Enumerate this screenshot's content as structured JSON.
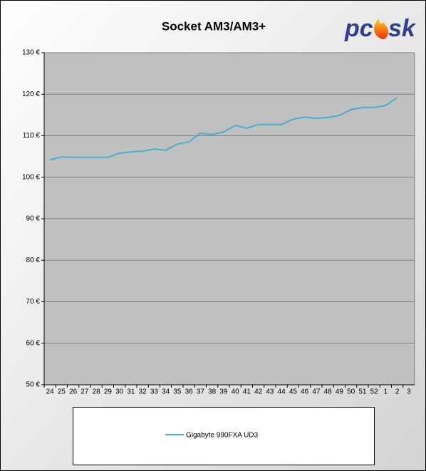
{
  "chart_data": {
    "type": "line",
    "title": "Socket AM3/AM3+",
    "logo_left": "pc",
    "logo_right": "sk",
    "categories": [
      "24",
      "25",
      "26",
      "27",
      "28",
      "29",
      "30",
      "31",
      "32",
      "33",
      "34",
      "35",
      "36",
      "37",
      "38",
      "39",
      "40",
      "41",
      "42",
      "43",
      "44",
      "45",
      "46",
      "47",
      "48",
      "49",
      "50",
      "51",
      "52",
      "1",
      "2",
      "3"
    ],
    "series": [
      {
        "name": "Gigabyte 990FXA UD3",
        "color": "#4aaccc",
        "values": [
          104.2,
          104.9,
          104.8,
          104.8,
          104.8,
          104.8,
          105.8,
          106.1,
          106.3,
          106.8,
          106.5,
          108.0,
          108.5,
          110.6,
          110.3,
          110.9,
          112.5,
          111.8,
          112.7,
          112.7,
          112.7,
          114.0,
          114.5,
          114.2,
          114.4,
          114.9,
          116.3,
          116.8,
          116.8,
          117.3,
          119.2,
          null
        ]
      }
    ],
    "ylim": [
      50,
      130
    ],
    "yticks": [
      {
        "value": 50,
        "label": "50 €"
      },
      {
        "value": 60,
        "label": "60 €"
      },
      {
        "value": 70,
        "label": "70 €"
      },
      {
        "value": 80,
        "label": "80 €"
      },
      {
        "value": 90,
        "label": "90 €"
      },
      {
        "value": 100,
        "label": "100 €"
      },
      {
        "value": 110,
        "label": "110 €"
      },
      {
        "value": 120,
        "label": "120 €"
      },
      {
        "value": 130,
        "label": "130 €"
      }
    ],
    "grid": true
  }
}
